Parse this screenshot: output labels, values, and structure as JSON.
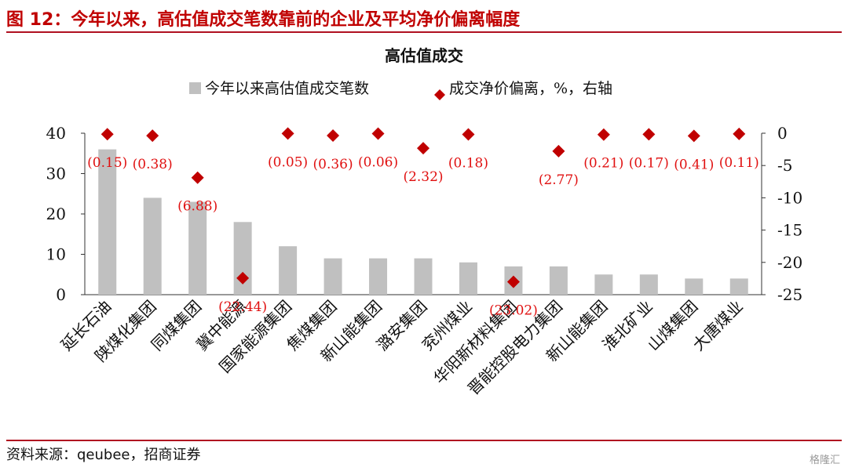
{
  "figure": {
    "label": "图 12：今年以来，高估值成交笔数靠前的企业及平均净价偏离幅度",
    "source": "资料来源：qeubee，招商证券",
    "watermark": "格隆汇"
  },
  "colors": {
    "bar": "#c0c0c0",
    "marker": "#c00000",
    "label": "#e01010",
    "rule": "#b01020",
    "title": "#c00000"
  },
  "chart_data": {
    "type": "bar",
    "title": "高估值成交",
    "categories": [
      "延长石油",
      "陕煤化集团",
      "同煤集团",
      "冀中能源",
      "国家能源集团",
      "焦煤集团",
      "新山能集团",
      "潞安集团",
      "兖州煤业",
      "华阳新材料集团",
      "晋能控股电力集团",
      "新山能集团",
      "淮北矿业",
      "山煤集团",
      "大唐煤业"
    ],
    "series": [
      {
        "name": "今年以来高估值成交笔数",
        "type": "bar",
        "axis": "left",
        "values": [
          36,
          24,
          23,
          18,
          12,
          9,
          9,
          9,
          8,
          7,
          7,
          5,
          5,
          4,
          4
        ]
      },
      {
        "name": "成交净价偏离，%，右轴",
        "type": "scatter",
        "axis": "right",
        "marker": "diamond",
        "values": [
          -0.15,
          -0.38,
          -6.88,
          -22.44,
          -0.05,
          -0.36,
          -0.06,
          -2.32,
          -0.18,
          -23.02,
          -2.77,
          -0.21,
          -0.17,
          -0.41,
          -0.11
        ],
        "data_labels": [
          "(0.15)",
          "(0.38)",
          "(6.88)",
          "(22.44)",
          "(0.05)",
          "(0.36)",
          "(0.06)",
          "(2.32)",
          "(0.18)",
          "(23.02)",
          "(2.77)",
          "(0.21)",
          "(0.17)",
          "(0.41)",
          "(0.11)"
        ]
      }
    ],
    "ylim": [
      0,
      40
    ],
    "yticks": [
      "0",
      "10",
      "20",
      "30",
      "40"
    ],
    "y2lim": [
      -25,
      0
    ],
    "y2ticks": [
      "0",
      "-5",
      "-10",
      "-15",
      "-20",
      "-25"
    ],
    "legend_position": "top-center",
    "grid": false
  }
}
